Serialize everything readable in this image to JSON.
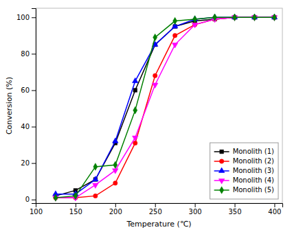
{
  "chart_data": {
    "type": "line",
    "xlabel": "Temperature (℃)",
    "ylabel": "Conversion (%)",
    "x": [
      125,
      150,
      175,
      200,
      225,
      250,
      275,
      300,
      325,
      350,
      375,
      400
    ],
    "series": [
      {
        "name": "Monolith (1)",
        "color": "#000000",
        "marker": "square",
        "values": [
          2,
          5,
          11,
          31,
          60,
          85,
          95,
          98,
          99,
          100,
          100,
          100
        ]
      },
      {
        "name": "Monolith (2)",
        "color": "#ff0000",
        "marker": "circle",
        "values": [
          1,
          1,
          2,
          9,
          31,
          68,
          90,
          96,
          99,
          100,
          100,
          100
        ]
      },
      {
        "name": "Monolith (3)",
        "color": "#0000ff",
        "marker": "triangle-up",
        "values": [
          3,
          3,
          11,
          32,
          65,
          85,
          95,
          99,
          100,
          100,
          100,
          100
        ]
      },
      {
        "name": "Monolith (4)",
        "color": "#ff00ff",
        "marker": "triangle-down",
        "values": [
          1,
          1,
          8,
          16,
          34,
          63,
          85,
          96,
          99,
          100,
          100,
          100
        ]
      },
      {
        "name": "Monolith (5)",
        "color": "#008000",
        "marker": "diamond",
        "values": [
          1,
          2,
          18,
          19,
          49,
          89,
          98,
          99,
          100,
          100,
          100,
          100
        ]
      }
    ],
    "xlim": [
      100,
      410
    ],
    "ylim": [
      -2,
      105
    ],
    "xticks": [
      100,
      150,
      200,
      250,
      300,
      350,
      400
    ],
    "yticks": [
      0,
      20,
      40,
      60,
      80,
      100
    ],
    "grid": false,
    "legend": "lower right"
  }
}
